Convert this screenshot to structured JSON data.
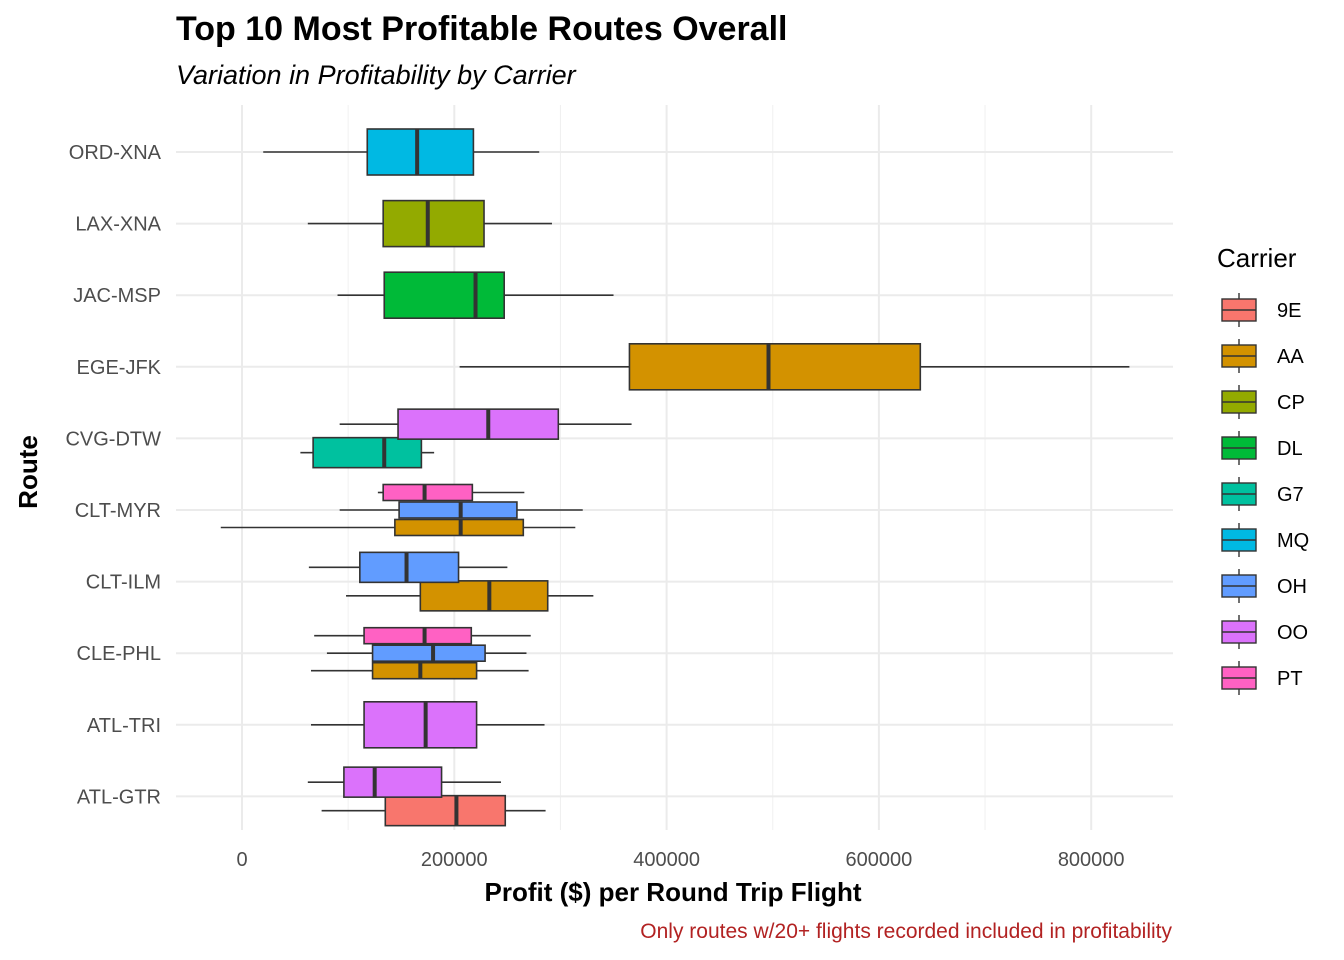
{
  "chart_data": {
    "type": "boxplot",
    "title": "Top 10 Most Profitable Routes Overall",
    "subtitle": "Variation in Profitability by Carrier",
    "xlabel": "Profit ($) per Round Trip Flight",
    "ylabel": "Route",
    "caption": "Only routes w/20+ flights recorded included in profitability",
    "xlim": [
      -65000,
      875000
    ],
    "x_ticks": [
      0,
      200000,
      400000,
      600000,
      800000
    ],
    "x_tick_labels": [
      "0",
      "200000",
      "400000",
      "600000",
      "800000"
    ],
    "grid": true,
    "legend": {
      "title": "Carrier",
      "position": "right"
    },
    "carriers": [
      {
        "name": "9E",
        "color": "#F8766D"
      },
      {
        "name": "AA",
        "color": "#D39200"
      },
      {
        "name": "CP",
        "color": "#93AA00"
      },
      {
        "name": "DL",
        "color": "#00BA38"
      },
      {
        "name": "G7",
        "color": "#00C19F"
      },
      {
        "name": "MQ",
        "color": "#00B9E3"
      },
      {
        "name": "OH",
        "color": "#619CFF"
      },
      {
        "name": "OO",
        "color": "#DB72FB"
      },
      {
        "name": "PT",
        "color": "#FF61C3"
      }
    ],
    "routes": [
      {
        "route": "ORD-XNA",
        "boxes": [
          {
            "carrier": "MQ",
            "min": 20000,
            "q1": 118000,
            "median": 165000,
            "q3": 218000,
            "max": 280000
          }
        ]
      },
      {
        "route": "LAX-XNA",
        "boxes": [
          {
            "carrier": "CP",
            "min": 62000,
            "q1": 133000,
            "median": 175000,
            "q3": 228000,
            "max": 292000
          }
        ]
      },
      {
        "route": "JAC-MSP",
        "boxes": [
          {
            "carrier": "DL",
            "min": 90000,
            "q1": 134000,
            "median": 220000,
            "q3": 247000,
            "max": 350000
          }
        ]
      },
      {
        "route": "EGE-JFK",
        "boxes": [
          {
            "carrier": "AA",
            "min": 205000,
            "q1": 365000,
            "median": 496000,
            "q3": 639000,
            "max": 836000
          }
        ]
      },
      {
        "route": "CVG-DTW",
        "boxes": [
          {
            "carrier": "G7",
            "min": 55000,
            "q1": 67000,
            "median": 134000,
            "q3": 169000,
            "max": 181000
          },
          {
            "carrier": "OO",
            "min": 92000,
            "q1": 147000,
            "median": 232000,
            "q3": 298000,
            "max": 367000
          }
        ]
      },
      {
        "route": "CLT-MYR",
        "boxes": [
          {
            "carrier": "AA",
            "min": -20000,
            "q1": 144000,
            "median": 206000,
            "q3": 265000,
            "max": 314000
          },
          {
            "carrier": "OH",
            "min": 92000,
            "q1": 148000,
            "median": 206000,
            "q3": 259000,
            "max": 321000
          },
          {
            "carrier": "PT",
            "min": 128000,
            "q1": 133000,
            "median": 172000,
            "q3": 217000,
            "max": 266000
          }
        ]
      },
      {
        "route": "CLT-ILM",
        "boxes": [
          {
            "carrier": "AA",
            "min": 98000,
            "q1": 168000,
            "median": 233000,
            "q3": 288000,
            "max": 331000
          },
          {
            "carrier": "OH",
            "min": 63000,
            "q1": 111000,
            "median": 155000,
            "q3": 204000,
            "max": 250000
          }
        ]
      },
      {
        "route": "CLE-PHL",
        "boxes": [
          {
            "carrier": "AA",
            "min": 65000,
            "q1": 123000,
            "median": 168000,
            "q3": 221000,
            "max": 270000
          },
          {
            "carrier": "OH",
            "min": 80000,
            "q1": 123000,
            "median": 180000,
            "q3": 229000,
            "max": 268000
          },
          {
            "carrier": "PT",
            "min": 68000,
            "q1": 115000,
            "median": 172000,
            "q3": 216000,
            "max": 272000
          }
        ]
      },
      {
        "route": "ATL-TRI",
        "boxes": [
          {
            "carrier": "OO",
            "min": 65000,
            "q1": 115000,
            "median": 173000,
            "q3": 221000,
            "max": 285000
          }
        ]
      },
      {
        "route": "ATL-GTR",
        "boxes": [
          {
            "carrier": "9E",
            "min": 75000,
            "q1": 135000,
            "median": 202000,
            "q3": 248000,
            "max": 286000
          },
          {
            "carrier": "OO",
            "min": 62000,
            "q1": 96000,
            "median": 125000,
            "q3": 188000,
            "max": 244000
          }
        ]
      }
    ]
  }
}
